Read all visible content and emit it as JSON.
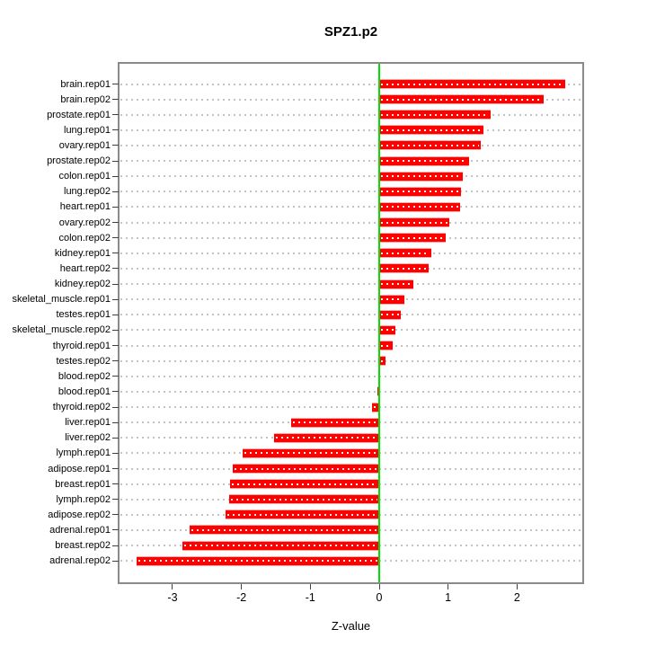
{
  "chart_data": {
    "type": "bar",
    "orientation": "horizontal",
    "title": "SPZ1.p2",
    "xlabel": "Z-value",
    "categories": [
      "brain.rep01",
      "brain.rep02",
      "prostate.rep01",
      "lung.rep01",
      "ovary.rep01",
      "prostate.rep02",
      "colon.rep01",
      "lung.rep02",
      "heart.rep01",
      "ovary.rep02",
      "colon.rep02",
      "kidney.rep01",
      "heart.rep02",
      "kidney.rep02",
      "skeletal_muscle.rep01",
      "testes.rep01",
      "skeletal_muscle.rep02",
      "thyroid.rep01",
      "testes.rep02",
      "blood.rep02",
      "blood.rep01",
      "thyroid.rep02",
      "liver.rep01",
      "liver.rep02",
      "lymph.rep01",
      "adipose.rep01",
      "breast.rep01",
      "lymph.rep02",
      "adipose.rep02",
      "adrenal.rep01",
      "breast.rep02",
      "adrenal.rep02"
    ],
    "values": [
      2.7,
      2.39,
      1.62,
      1.51,
      1.48,
      1.31,
      1.21,
      1.19,
      1.17,
      1.02,
      0.96,
      0.76,
      0.72,
      0.5,
      0.36,
      0.31,
      0.23,
      0.2,
      0.09,
      0.01,
      -0.02,
      -0.11,
      -1.28,
      -1.52,
      -1.98,
      -2.12,
      -2.16,
      -2.18,
      -2.23,
      -2.75,
      -2.86,
      -3.52
    ],
    "xticks": [
      -3,
      -2,
      -1,
      0,
      1,
      2
    ],
    "xlim": [
      -3.77,
      2.95
    ],
    "grid": "dotted horizontal line per category",
    "legend": "none",
    "bar_color": "#ff0000",
    "zero_line_color": "#00df00",
    "frame_color": "#8a8a8a"
  }
}
